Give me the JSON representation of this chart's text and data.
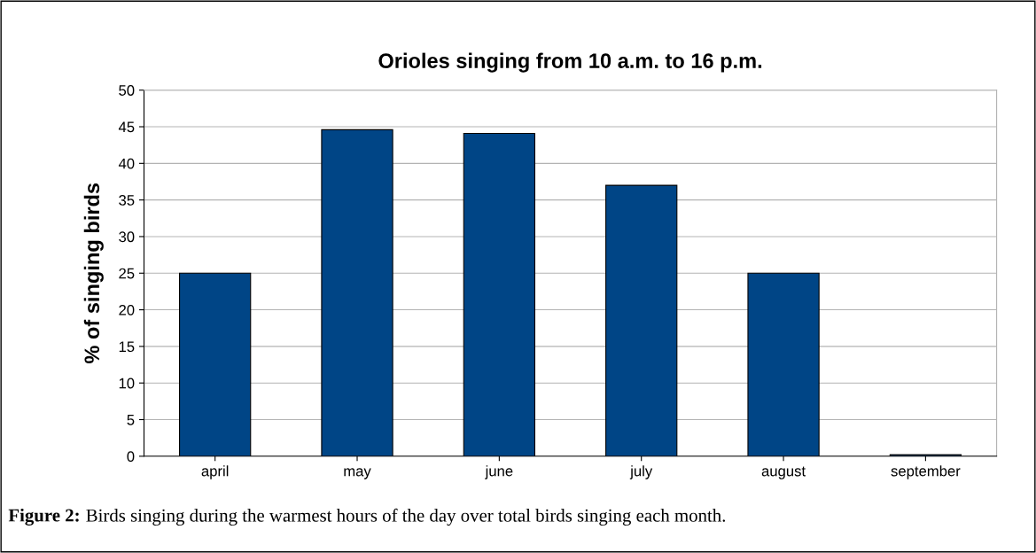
{
  "chart_data": {
    "type": "bar",
    "title": "Orioles singing from 10 a.m. to 16 p.m.",
    "ylabel": "% of singing birds",
    "categories": [
      "april",
      "may",
      "june",
      "july",
      "august",
      "september"
    ],
    "values": [
      25,
      44.6,
      44.1,
      37,
      25,
      0.2
    ],
    "color": "#004586",
    "ylim": [
      0,
      50
    ],
    "yticks": [
      0,
      5,
      10,
      15,
      20,
      25,
      30,
      35,
      40,
      45,
      50
    ],
    "grid": "y",
    "legend": false,
    "annotations": [
      "Figure 2:",
      "Birds singing during the warmest hours of the day over total birds singing each month."
    ]
  }
}
